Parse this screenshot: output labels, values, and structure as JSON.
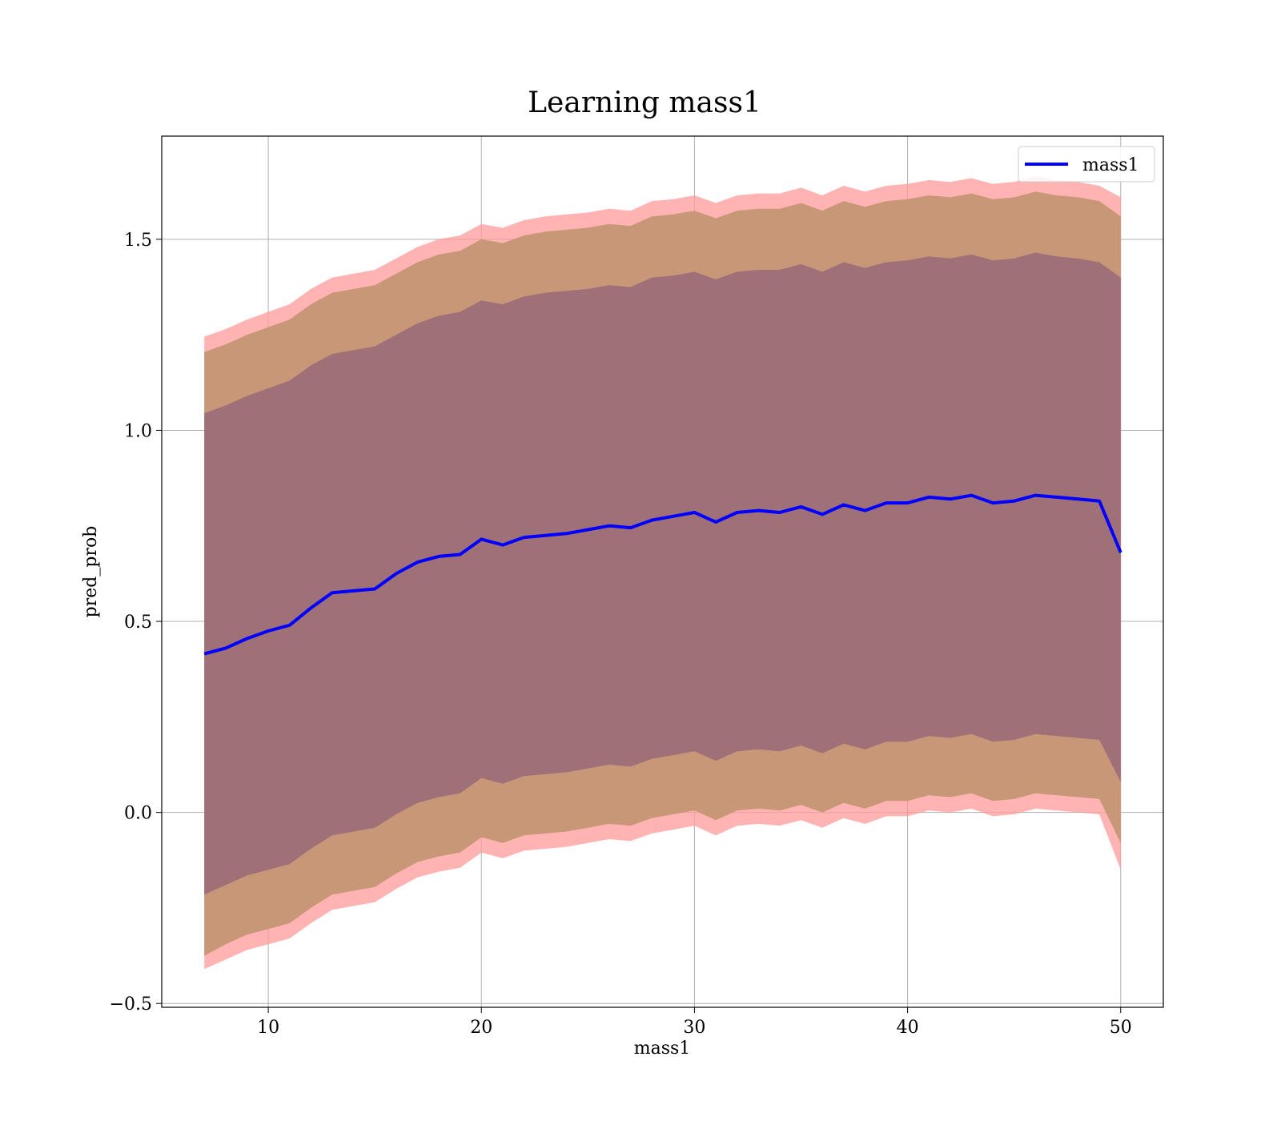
{
  "chart_data": {
    "type": "line",
    "title": "Learning mass1",
    "xlabel": "mass1",
    "ylabel": "pred_prob",
    "xlim": [
      5,
      52
    ],
    "ylim": [
      -0.51,
      1.77
    ],
    "xticks": [
      10,
      20,
      30,
      40,
      50
    ],
    "xtick_labels": [
      "10",
      "20",
      "30",
      "40",
      "50"
    ],
    "yticks": [
      -0.5,
      0.0,
      0.5,
      1.0,
      1.5
    ],
    "ytick_labels": [
      "−0.5",
      "0.0",
      "0.5",
      "1.0",
      "1.5"
    ],
    "grid": true,
    "legend": {
      "placement": "top-right",
      "entries": [
        "mass1"
      ]
    },
    "colors": {
      "line": "#0000ff",
      "band_outer": "#ff9999",
      "band_middle": "#c89778",
      "band_inner": "#a07078"
    },
    "series": [
      {
        "name": "mass1",
        "x": [
          7,
          8,
          9,
          10,
          11,
          12,
          13,
          14,
          15,
          16,
          17,
          18,
          19,
          20,
          21,
          22,
          23,
          24,
          25,
          26,
          27,
          28,
          29,
          30,
          31,
          32,
          33,
          34,
          35,
          36,
          37,
          38,
          39,
          40,
          41,
          42,
          43,
          44,
          45,
          46,
          47,
          48,
          49,
          50
        ],
        "y": [
          0.415,
          0.43,
          0.455,
          0.475,
          0.49,
          0.535,
          0.575,
          0.58,
          0.585,
          0.625,
          0.655,
          0.67,
          0.675,
          0.715,
          0.7,
          0.72,
          0.725,
          0.73,
          0.74,
          0.75,
          0.745,
          0.765,
          0.775,
          0.785,
          0.76,
          0.785,
          0.79,
          0.785,
          0.8,
          0.78,
          0.805,
          0.79,
          0.81,
          0.81,
          0.825,
          0.82,
          0.83,
          0.81,
          0.815,
          0.83,
          0.825,
          0.82,
          0.815,
          0.68
        ]
      }
    ],
    "bands": [
      {
        "level": "outer",
        "upper": [
          1.245,
          1.265,
          1.29,
          1.31,
          1.33,
          1.37,
          1.4,
          1.41,
          1.42,
          1.45,
          1.48,
          1.5,
          1.51,
          1.54,
          1.53,
          1.55,
          1.56,
          1.565,
          1.57,
          1.58,
          1.575,
          1.6,
          1.605,
          1.615,
          1.595,
          1.615,
          1.62,
          1.62,
          1.635,
          1.615,
          1.64,
          1.625,
          1.64,
          1.645,
          1.655,
          1.65,
          1.66,
          1.645,
          1.65,
          1.665,
          1.655,
          1.65,
          1.64,
          1.61
        ],
        "lower": [
          -0.41,
          -0.385,
          -0.36,
          -0.345,
          -0.33,
          -0.29,
          -0.255,
          -0.245,
          -0.235,
          -0.2,
          -0.17,
          -0.155,
          -0.145,
          -0.105,
          -0.12,
          -0.1,
          -0.095,
          -0.09,
          -0.08,
          -0.07,
          -0.075,
          -0.055,
          -0.045,
          -0.035,
          -0.06,
          -0.035,
          -0.03,
          -0.035,
          -0.02,
          -0.04,
          -0.015,
          -0.03,
          -0.01,
          -0.01,
          0.005,
          0.0,
          0.01,
          -0.01,
          -0.005,
          0.01,
          0.005,
          0.0,
          -0.005,
          -0.15
        ]
      },
      {
        "level": "middle",
        "upper": [
          1.205,
          1.225,
          1.25,
          1.27,
          1.29,
          1.33,
          1.36,
          1.37,
          1.38,
          1.41,
          1.44,
          1.46,
          1.47,
          1.5,
          1.49,
          1.51,
          1.52,
          1.525,
          1.53,
          1.54,
          1.535,
          1.56,
          1.565,
          1.575,
          1.555,
          1.575,
          1.58,
          1.58,
          1.595,
          1.575,
          1.6,
          1.585,
          1.6,
          1.605,
          1.615,
          1.61,
          1.62,
          1.605,
          1.61,
          1.625,
          1.615,
          1.61,
          1.6,
          1.56
        ],
        "lower": [
          -0.375,
          -0.345,
          -0.32,
          -0.305,
          -0.29,
          -0.25,
          -0.215,
          -0.205,
          -0.195,
          -0.16,
          -0.13,
          -0.115,
          -0.105,
          -0.065,
          -0.08,
          -0.06,
          -0.055,
          -0.05,
          -0.04,
          -0.03,
          -0.035,
          -0.015,
          -0.005,
          0.005,
          -0.02,
          0.005,
          0.01,
          0.005,
          0.02,
          0.0,
          0.025,
          0.01,
          0.03,
          0.03,
          0.045,
          0.04,
          0.05,
          0.03,
          0.035,
          0.05,
          0.045,
          0.04,
          0.035,
          -0.08
        ]
      },
      {
        "level": "inner",
        "upper": [
          1.045,
          1.065,
          1.09,
          1.11,
          1.13,
          1.17,
          1.2,
          1.21,
          1.22,
          1.25,
          1.28,
          1.3,
          1.31,
          1.34,
          1.33,
          1.35,
          1.36,
          1.365,
          1.37,
          1.38,
          1.375,
          1.4,
          1.405,
          1.415,
          1.395,
          1.415,
          1.42,
          1.42,
          1.435,
          1.415,
          1.44,
          1.425,
          1.44,
          1.445,
          1.455,
          1.45,
          1.46,
          1.445,
          1.45,
          1.465,
          1.455,
          1.45,
          1.44,
          1.4
        ],
        "lower": [
          -0.215,
          -0.19,
          -0.165,
          -0.15,
          -0.135,
          -0.095,
          -0.06,
          -0.05,
          -0.04,
          -0.005,
          0.025,
          0.04,
          0.05,
          0.09,
          0.075,
          0.095,
          0.1,
          0.105,
          0.115,
          0.125,
          0.12,
          0.14,
          0.15,
          0.16,
          0.135,
          0.16,
          0.165,
          0.16,
          0.175,
          0.155,
          0.18,
          0.165,
          0.185,
          0.185,
          0.2,
          0.195,
          0.205,
          0.185,
          0.19,
          0.205,
          0.2,
          0.195,
          0.19,
          0.08
        ]
      }
    ]
  }
}
